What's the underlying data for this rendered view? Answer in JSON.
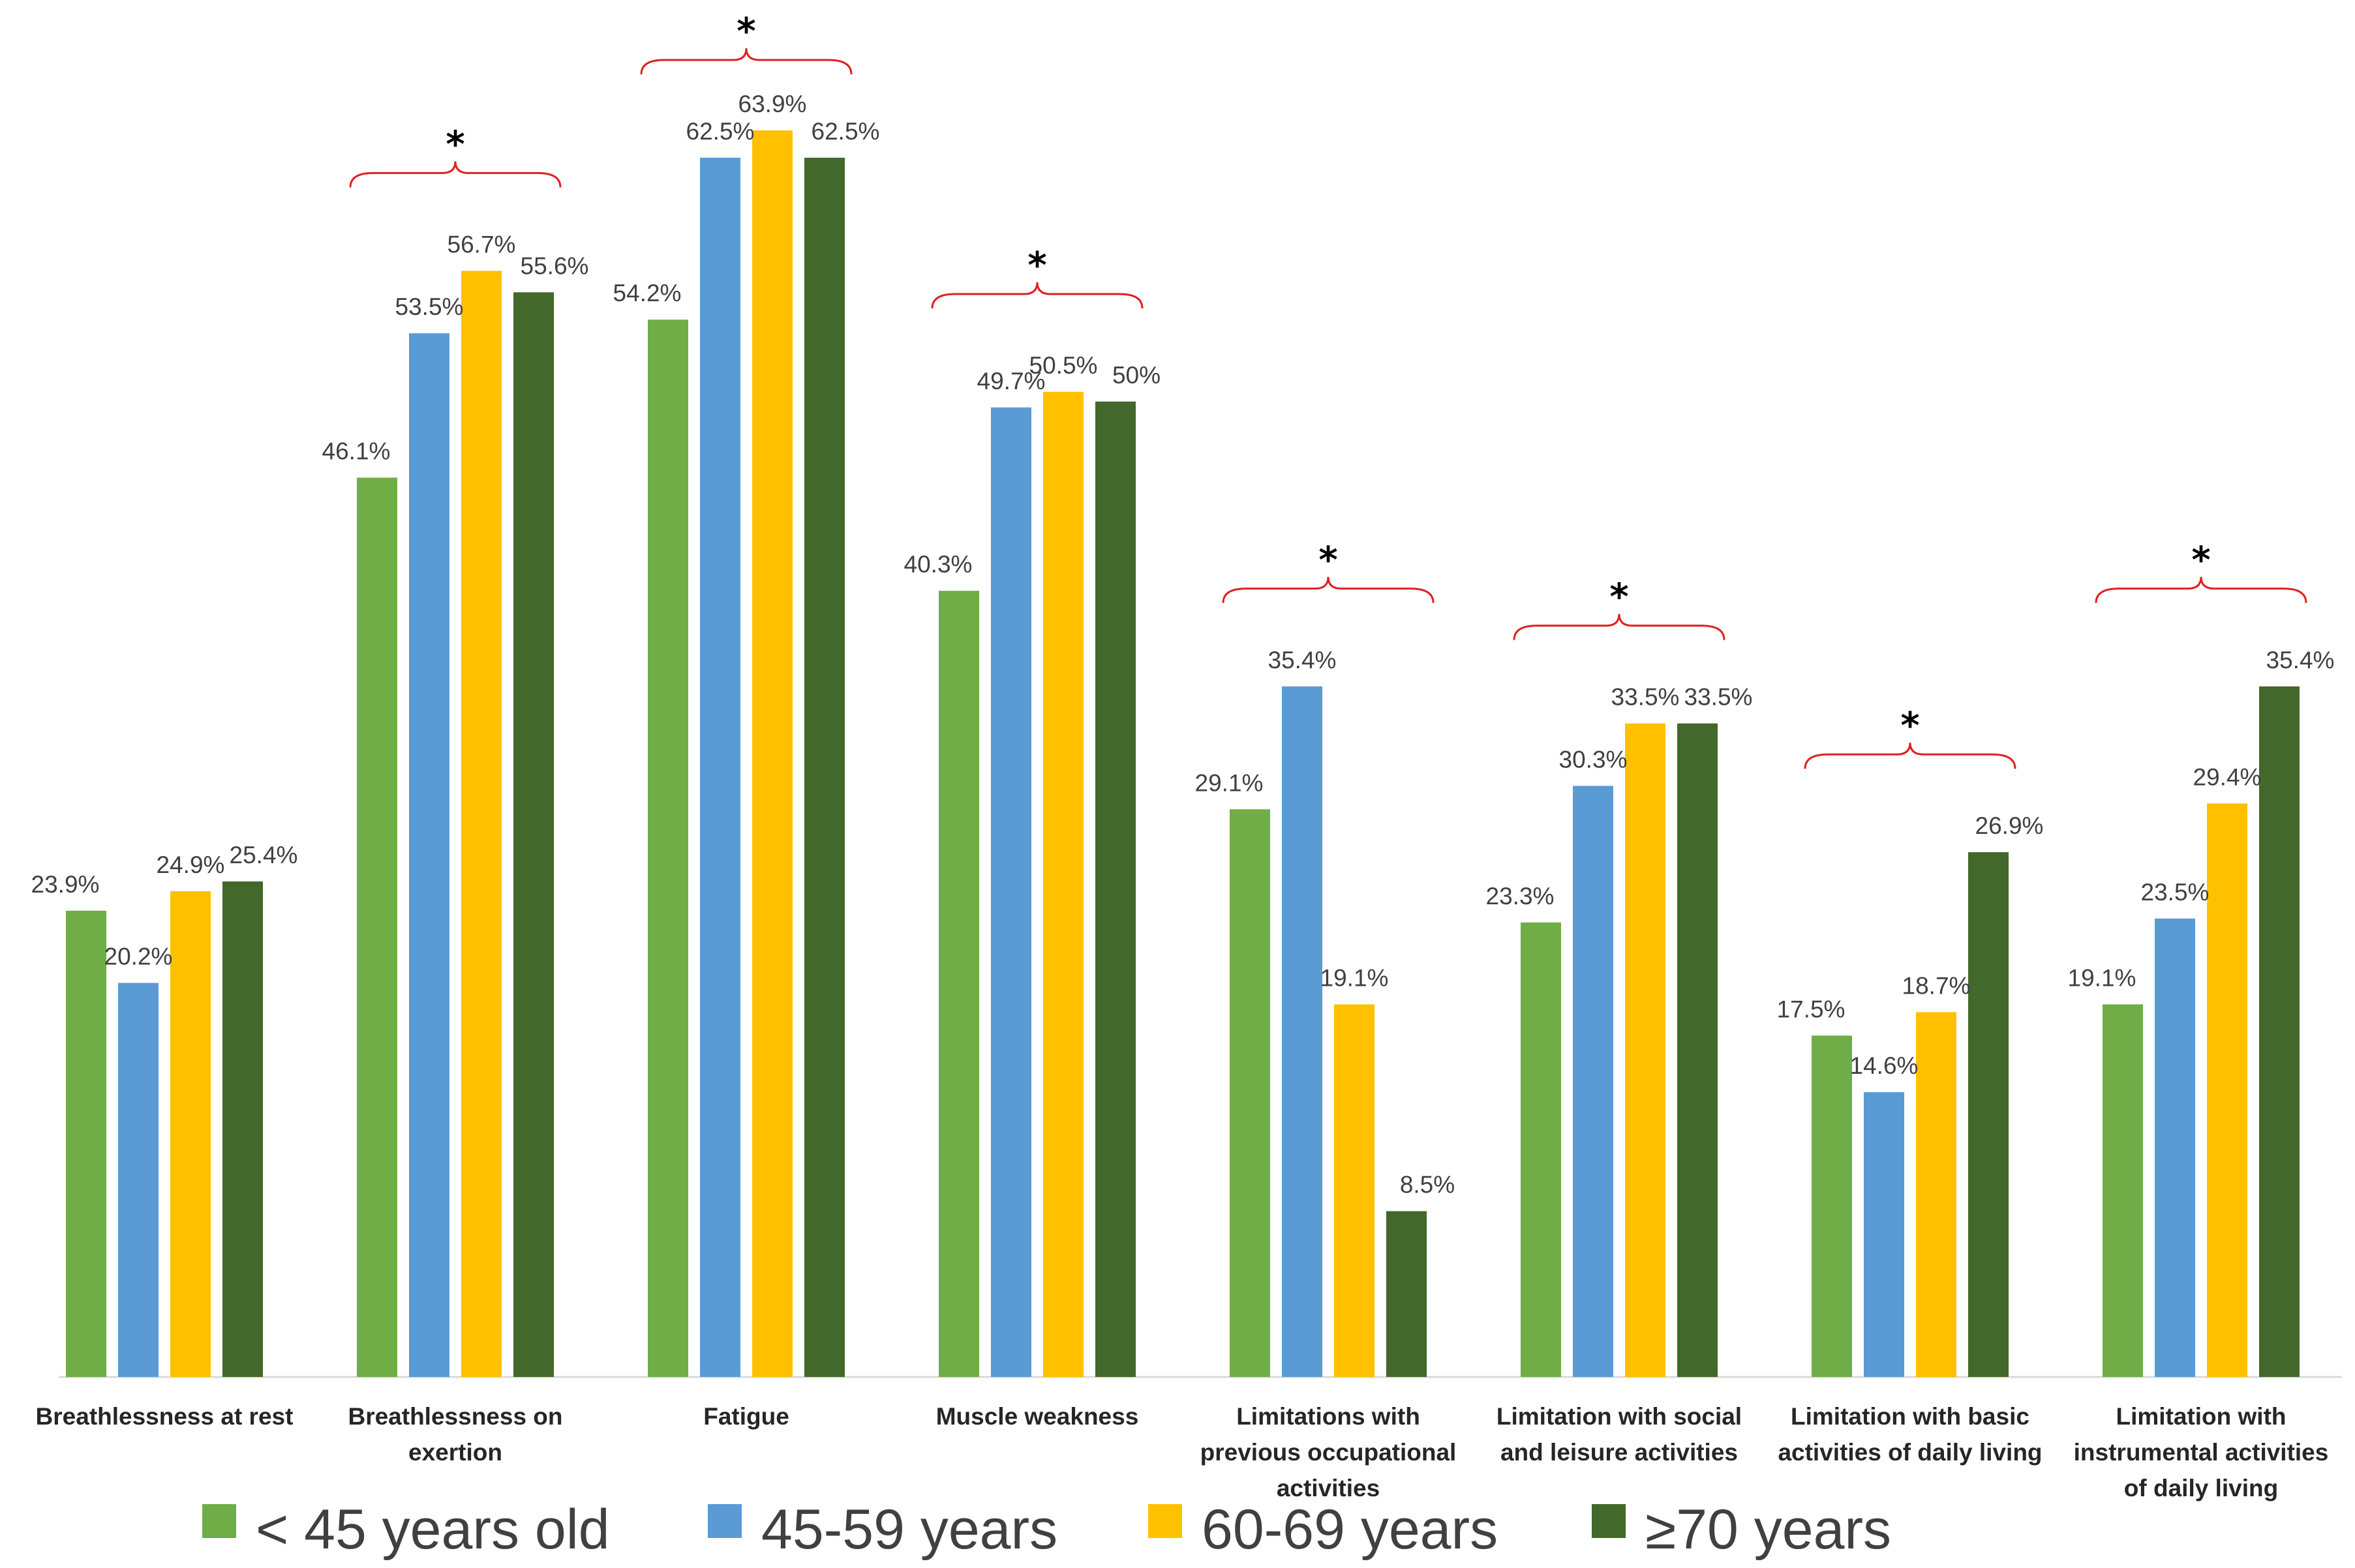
{
  "chart_data": {
    "type": "bar",
    "title": "",
    "xlabel": "",
    "ylabel": "",
    "ylim": [
      0,
      70
    ],
    "grid": false,
    "legend_position": "bottom",
    "categories": [
      [
        "Breathlessness at rest"
      ],
      [
        "Breathlessness on",
        "exertion"
      ],
      [
        "Fatigue"
      ],
      [
        "Muscle weakness"
      ],
      [
        "Limitations with",
        "previous occupational",
        "activities"
      ],
      [
        "Limitation with social",
        "and leisure activities"
      ],
      [
        "Limitation with basic",
        "activities of daily living"
      ],
      [
        "Limitation with",
        "instrumental activities",
        "of daily living"
      ]
    ],
    "series": [
      {
        "name": "< 45 years old",
        "color": "#70ad47",
        "values": [
          23.9,
          46.1,
          54.2,
          40.3,
          29.1,
          23.3,
          17.5,
          19.1
        ],
        "labels": [
          "23.9%",
          "46.1%",
          "54.2%",
          "40.3%",
          "29.1%",
          "23.3%",
          "17.5%",
          "19.1%"
        ]
      },
      {
        "name": "45-59 years",
        "color": "#5b9bd5",
        "values": [
          20.2,
          53.5,
          62.5,
          49.7,
          35.4,
          30.3,
          14.6,
          23.5
        ],
        "labels": [
          "20.2%",
          "53.5%",
          "62.5%",
          "49.7%",
          "35.4%",
          "30.3%",
          "14.6%",
          "23.5%"
        ]
      },
      {
        "name": "60-69 years",
        "color": "#ffc000",
        "values": [
          24.9,
          56.7,
          63.9,
          50.5,
          19.1,
          33.5,
          18.7,
          29.4
        ],
        "labels": [
          "24.9%",
          "56.7%",
          "63.9%",
          "50.5%",
          "19.1%",
          "33.5%",
          "18.7%",
          "29.4%"
        ]
      },
      {
        "name": "≥70 years",
        "color": "#43682b",
        "values": [
          25.4,
          55.6,
          62.5,
          50,
          8.5,
          33.5,
          26.9,
          35.4
        ],
        "labels": [
          "25.4%",
          "55.6%",
          "62.5%",
          "50%",
          "8.5%",
          "33.5%",
          "26.9%",
          "35.4%"
        ]
      }
    ],
    "significance": [
      {
        "category_index": 1,
        "mark": "*"
      },
      {
        "category_index": 2,
        "mark": "*"
      },
      {
        "category_index": 3,
        "mark": "*"
      },
      {
        "category_index": 4,
        "mark": "*"
      },
      {
        "category_index": 5,
        "mark": "*"
      },
      {
        "category_index": 6,
        "mark": "*"
      },
      {
        "category_index": 7,
        "mark": "*"
      }
    ]
  }
}
